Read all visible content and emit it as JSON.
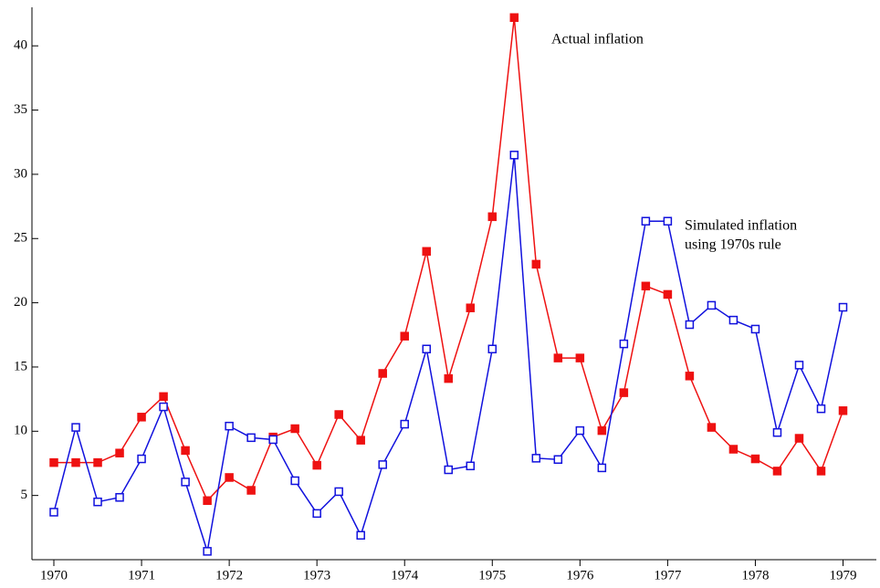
{
  "chart_data": {
    "type": "line",
    "x": [
      1970,
      1970.25,
      1970.5,
      1970.75,
      1971,
      1971.25,
      1971.5,
      1971.75,
      1972,
      1972.25,
      1972.5,
      1972.75,
      1973,
      1973.25,
      1973.5,
      1973.75,
      1974,
      1974.25,
      1974.5,
      1974.75,
      1975,
      1975.25,
      1975.5,
      1975.75,
      1976,
      1976.25,
      1976.5,
      1976.75,
      1977,
      1977.25,
      1977.5,
      1977.75,
      1978,
      1978.25,
      1978.5,
      1978.75,
      1979
    ],
    "series": [
      {
        "color": "#ee1111",
        "marker": "filled-square",
        "values": [
          7.56,
          7.56,
          7.56,
          8.3,
          11.1,
          12.7,
          8.5,
          4.6,
          6.4,
          5.4,
          9.55,
          10.2,
          7.35,
          11.3,
          9.3,
          14.5,
          17.4,
          24.0,
          14.1,
          19.6,
          26.7,
          42.2,
          23.0,
          15.7,
          15.7,
          10.05,
          13.0,
          21.3,
          20.65,
          14.3,
          10.3,
          8.6,
          7.85,
          6.9,
          9.45,
          6.9,
          11.6
        ]
      },
      {
        "color": "#1111dd",
        "marker": "open-square",
        "values": [
          3.7,
          10.3,
          4.5,
          4.85,
          7.85,
          11.9,
          6.05,
          0.65,
          10.4,
          9.5,
          9.35,
          6.15,
          3.6,
          5.3,
          1.9,
          7.4,
          10.55,
          16.4,
          7.0,
          7.3,
          16.4,
          31.5,
          7.9,
          7.8,
          10.05,
          7.15,
          16.8,
          26.35,
          26.35,
          18.3,
          19.8,
          18.65,
          17.95,
          9.9,
          15.15,
          11.75,
          19.65
        ]
      }
    ],
    "annotations": [
      "Actual inflation",
      "Simulated inflation",
      "using 1970s rule"
    ],
    "xlim": [
      1969.75,
      1979.38
    ],
    "xticks": [
      1970,
      1971,
      1972,
      1973,
      1974,
      1975,
      1976,
      1977,
      1978,
      1979
    ],
    "ylim": [
      0,
      43
    ],
    "yticks": [
      5,
      10,
      15,
      20,
      25,
      30,
      35,
      40
    ],
    "grid": false
  }
}
